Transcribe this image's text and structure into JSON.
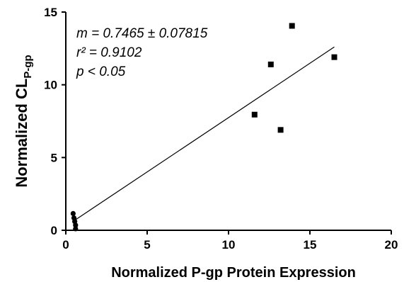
{
  "chart_data": {
    "type": "scatter",
    "title": "",
    "xlabel": "Normalized P-gp Protein Expression",
    "ylabel_main": "Normalized CL",
    "ylabel_sub": "P-gp",
    "xlim": [
      0,
      20
    ],
    "ylim": [
      0,
      15
    ],
    "xticks": [
      0,
      5,
      10,
      15,
      20
    ],
    "yticks": [
      0,
      5,
      10,
      15
    ],
    "grid": false,
    "points": [
      {
        "x": 0.45,
        "y": 1.15
      },
      {
        "x": 0.5,
        "y": 0.85
      },
      {
        "x": 0.55,
        "y": 0.6
      },
      {
        "x": 0.6,
        "y": 0.35
      },
      {
        "x": 0.6,
        "y": 0.1
      },
      {
        "x": 11.6,
        "y": 7.95
      },
      {
        "x": 12.6,
        "y": 11.4
      },
      {
        "x": 13.2,
        "y": 6.9
      },
      {
        "x": 13.9,
        "y": 14.05
      },
      {
        "x": 16.5,
        "y": 11.9
      }
    ],
    "fit_line": {
      "x_start": 0.5,
      "y_start": 0.65,
      "x_end": 16.5,
      "y_end": 12.6
    },
    "annotations": {
      "slope": "m = 0.7465 ± 0.07815",
      "r2": "r² = 0.9102",
      "p": "p < 0.05"
    }
  }
}
